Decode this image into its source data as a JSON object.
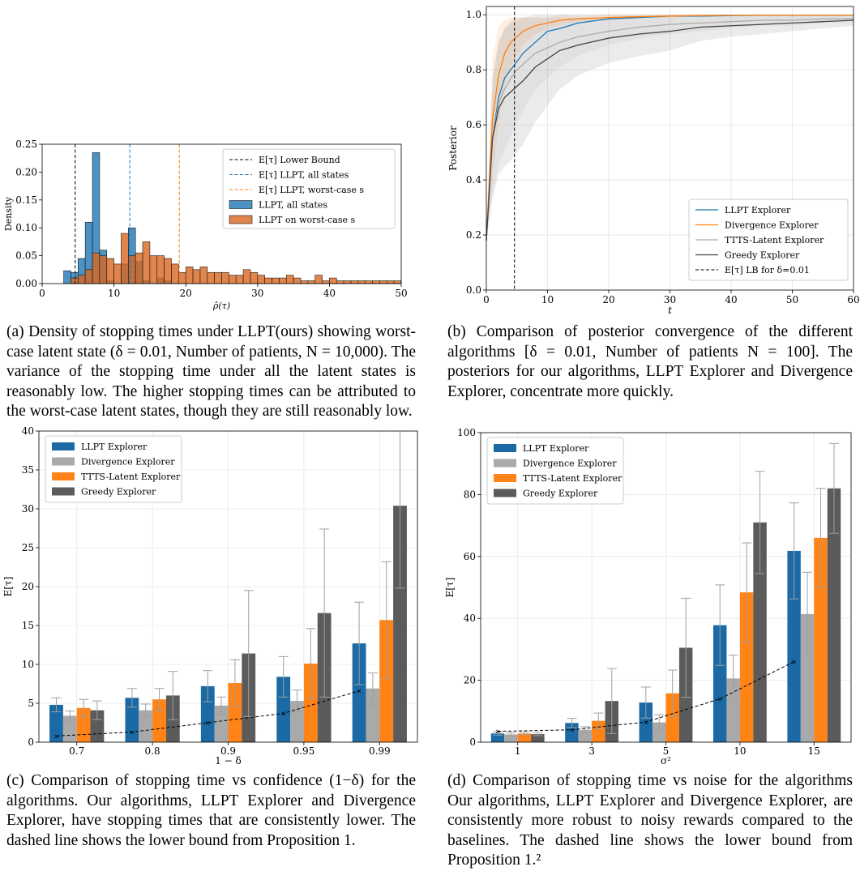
{
  "panels": [
    {
      "id": "a",
      "chart_data": {
        "type": "histogram",
        "xlabel": "ρ̂(τ)",
        "ylabel": "Density",
        "xlim": [
          0,
          50
        ],
        "ylim": [
          0,
          0.25
        ],
        "xticks": [
          "0",
          "10",
          "20",
          "30",
          "40",
          "50"
        ],
        "yticks": [
          "0.00",
          "0.05",
          "0.10",
          "0.15",
          "0.20",
          "0.25"
        ],
        "bin_width": 1,
        "bin_edges_start": 3,
        "vlines": [
          {
            "name": "E[τ] Lower Bound",
            "x": 4.6,
            "color": "#000000"
          },
          {
            "name": "E[τ] LLPT, all states",
            "x": 12.2,
            "color": "#1f77b4"
          },
          {
            "name": "E[τ] LLPT, worst-case s",
            "x": 19.1,
            "color": "#ff7f0e"
          }
        ],
        "series": [
          {
            "name": "LLPT, all states",
            "color": "#1f77b4",
            "values": [
              0.023,
              0.02,
              0.045,
              0.11,
              0.235,
              0.06,
              0.005,
              0.0,
              0.035,
              0.1,
              0.04,
              0.005,
              0.0,
              0.01,
              0.005,
              0.0,
              0.0,
              0.0,
              0.0,
              0.0,
              0.0,
              0.0,
              0.0,
              0.0,
              0.0,
              0.0,
              0.0,
              0.0,
              0.0,
              0.0,
              0.0,
              0.0,
              0.0,
              0.0,
              0.0,
              0.0,
              0.0,
              0.0,
              0.0,
              0.0,
              0.0,
              0.0,
              0.0,
              0.0,
              0.0,
              0.0,
              0.0
            ]
          },
          {
            "name": "LLPT on worst-case s",
            "color": "#d9661f",
            "values": [
              0.0,
              0.01,
              0.015,
              0.025,
              0.055,
              0.05,
              0.045,
              0.035,
              0.09,
              0.05,
              0.055,
              0.075,
              0.05,
              0.05,
              0.045,
              0.035,
              0.02,
              0.03,
              0.025,
              0.03,
              0.02,
              0.02,
              0.02,
              0.015,
              0.015,
              0.025,
              0.02,
              0.015,
              0.01,
              0.01,
              0.01,
              0.015,
              0.01,
              0.005,
              0.005,
              0.015,
              0.005,
              0.01,
              0.005,
              0.005,
              0.005,
              0.005,
              0.005,
              0.005,
              0.005,
              0.005,
              0.005
            ]
          }
        ]
      },
      "legend": {
        "entries": [
          "E[τ] Lower Bound",
          "E[τ] LLPT, all states",
          "E[τ] LLPT, worst-case s",
          "LLPT, all states",
          "LLPT on worst-case s"
        ]
      },
      "caption": "(a) Density of stopping times under LLPT(ours) showing worst-case latent state (δ = 0.01, Number of patients, N = 10,000). The variance of the stopping time under all the latent states is reasonably low. The higher stopping times can be attributed to the worst-case latent states, though they are still reasonably low."
    },
    {
      "id": "b",
      "chart_data": {
        "type": "line",
        "xlabel": "t",
        "ylabel": "Posterior",
        "xlim": [
          0,
          60
        ],
        "ylim": [
          0,
          1.03
        ],
        "xticks": [
          "0",
          "10",
          "20",
          "30",
          "40",
          "50",
          "60"
        ],
        "yticks": [
          "0.0",
          "0.2",
          "0.4",
          "0.6",
          "0.8",
          "1.0"
        ],
        "vline": {
          "name": "E[τ] LB for δ=0.01",
          "x": 4.6
        },
        "x": [
          0,
          1,
          2,
          3,
          4,
          5,
          6,
          8,
          10,
          12,
          15,
          20,
          25,
          30,
          35,
          40,
          45,
          50,
          55,
          60
        ],
        "series": [
          {
            "name": "LLPT Explorer",
            "color": "#1f77b4",
            "values": [
              0.18,
              0.55,
              0.7,
              0.77,
              0.8,
              0.83,
              0.86,
              0.9,
              0.94,
              0.95,
              0.97,
              0.985,
              0.99,
              0.995,
              0.995,
              0.997,
              0.998,
              0.998,
              0.998,
              0.998
            ]
          },
          {
            "name": "Divergence Explorer",
            "color": "#ff7f0e",
            "values": [
              0.18,
              0.62,
              0.78,
              0.86,
              0.9,
              0.92,
              0.94,
              0.96,
              0.97,
              0.98,
              0.985,
              0.99,
              0.993,
              0.995,
              0.997,
              0.998,
              0.998,
              0.998,
              0.998,
              0.998
            ]
          },
          {
            "name": "TTTS-Latent Explorer",
            "color": "#aaaaaa",
            "values": [
              0.18,
              0.55,
              0.68,
              0.73,
              0.77,
              0.8,
              0.82,
              0.86,
              0.88,
              0.9,
              0.92,
              0.94,
              0.955,
              0.965,
              0.97,
              0.975,
              0.98,
              0.98,
              0.985,
              0.985
            ]
          },
          {
            "name": "Greedy Explorer",
            "color": "#444444",
            "values": [
              0.18,
              0.55,
              0.66,
              0.7,
              0.72,
              0.74,
              0.76,
              0.81,
              0.84,
              0.87,
              0.89,
              0.915,
              0.93,
              0.94,
              0.955,
              0.96,
              0.965,
              0.97,
              0.975,
              0.98
            ]
          }
        ]
      },
      "caption": "(b) Comparison of posterior convergence of the different algorithms [δ = 0.01, Number of patients N = 100]. The posteriors for our algorithms, LLPT Explorer and Divergence Explorer, concentrate more quickly."
    },
    {
      "id": "c",
      "chart_data": {
        "type": "bar",
        "xlabel": "1 − δ",
        "ylabel": "E[τ]",
        "ylim": [
          0,
          40
        ],
        "yticks": [
          "0",
          "5",
          "10",
          "15",
          "20",
          "25",
          "30",
          "35",
          "40"
        ],
        "categories": [
          "0.7",
          "0.8",
          "0.9",
          "0.95",
          "0.99"
        ],
        "series": [
          {
            "name": "LLPT Explorer",
            "color": "#1b6aa5",
            "values": [
              4.8,
              5.7,
              7.2,
              8.4,
              12.7
            ],
            "err": [
              0.9,
              1.2,
              2.0,
              2.6,
              5.3
            ]
          },
          {
            "name": "Divergence Explorer",
            "color": "#a9a9a9",
            "values": [
              3.4,
              4.1,
              4.7,
              5.3,
              6.9
            ],
            "err": [
              0.6,
              0.8,
              1.1,
              1.4,
              2.0
            ]
          },
          {
            "name": "TTTS-Latent Explorer",
            "color": "#ff8317",
            "values": [
              4.4,
              5.5,
              7.6,
              10.1,
              15.7
            ],
            "err": [
              1.1,
              1.4,
              3.0,
              4.5,
              7.5
            ]
          },
          {
            "name": "Greedy Explorer",
            "color": "#5b5b5b",
            "values": [
              4.1,
              6.0,
              11.4,
              16.6,
              30.4
            ],
            "err": [
              1.2,
              3.1,
              8.1,
              10.8,
              10.6
            ]
          }
        ],
        "lower_bound": [
          0.8,
          1.3,
          2.5,
          3.7,
          6.6
        ]
      },
      "caption": "(c) Comparison of stopping time vs confidence (1−δ) for the algorithms. Our algorithms, LLPT Explorer and Divergence Explorer, have stopping times that are consistently lower. The dashed line shows the lower bound from Proposition 1."
    },
    {
      "id": "d",
      "chart_data": {
        "type": "bar",
        "xlabel": "σ²",
        "ylabel": "E[τ]",
        "ylim": [
          0,
          100
        ],
        "yticks": [
          "0",
          "20",
          "40",
          "60",
          "80",
          "100"
        ],
        "categories": [
          "1",
          "3",
          "5",
          "10",
          "15"
        ],
        "series": [
          {
            "name": "LLPT Explorer",
            "color": "#1b6aa5",
            "values": [
              2.8,
              6.2,
              12.8,
              37.8,
              61.8
            ],
            "err": [
              0.5,
              1.5,
              5.0,
              13.0,
              15.5
            ]
          },
          {
            "name": "Divergence Explorer",
            "color": "#a9a9a9",
            "values": [
              2.5,
              4.0,
              6.4,
              20.6,
              41.4
            ],
            "err": [
              0.5,
              1.0,
              2.5,
              7.5,
              13.5
            ]
          },
          {
            "name": "TTTS-Latent Explorer",
            "color": "#ff8317",
            "values": [
              2.8,
              6.9,
              15.8,
              48.4,
              66.0
            ],
            "err": [
              0.5,
              2.5,
              7.5,
              16.0,
              16.0
            ]
          },
          {
            "name": "Greedy Explorer",
            "color": "#5b5b5b",
            "values": [
              2.6,
              13.3,
              30.5,
              71.0,
              82.0
            ],
            "err": [
              0.5,
              10.5,
              16.0,
              16.5,
              14.5
            ]
          }
        ],
        "lower_bound": [
          3.5,
          4.0,
          6.5,
          14.0,
          26.0
        ]
      },
      "caption": "(d) Comparison of stopping time vs noise for the algorithms Our algorithms, LLPT Explorer and Divergence Explorer, are consistently more robust to noisy rewards compared to the baselines. The dashed line shows the lower bound from Proposition 1.²"
    }
  ]
}
